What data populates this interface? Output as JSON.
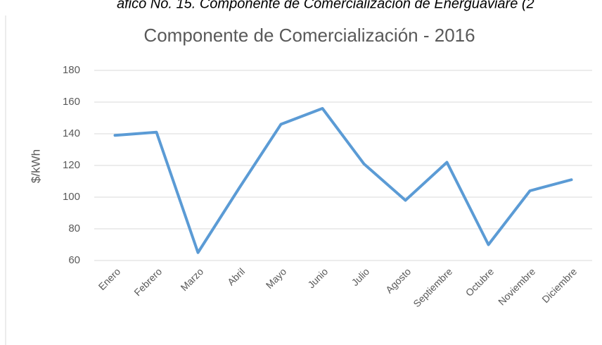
{
  "caption": "áfico No. 15. Componente de Comercialización de Energuaviare (2",
  "chart_data": {
    "type": "line",
    "title": "Componente de Comercialización - 2016",
    "y_label": "$/kWh",
    "categories": [
      "Enero",
      "Febrero",
      "Marzo",
      "Abril",
      "Mayo",
      "Junio",
      "Julio",
      "Agosto",
      "Septiembre",
      "Octubre",
      "Noviembre",
      "Diciembre"
    ],
    "series": [
      {
        "name": "Componente de Comercialización",
        "color": "#5b9bd5",
        "values": [
          139,
          141,
          65,
          106,
          146,
          156,
          121,
          98,
          122,
          70,
          104,
          111
        ]
      }
    ],
    "ylim": [
      60,
      180
    ],
    "yticks": [
      60,
      80,
      100,
      120,
      140,
      160,
      180
    ],
    "grid": true
  }
}
